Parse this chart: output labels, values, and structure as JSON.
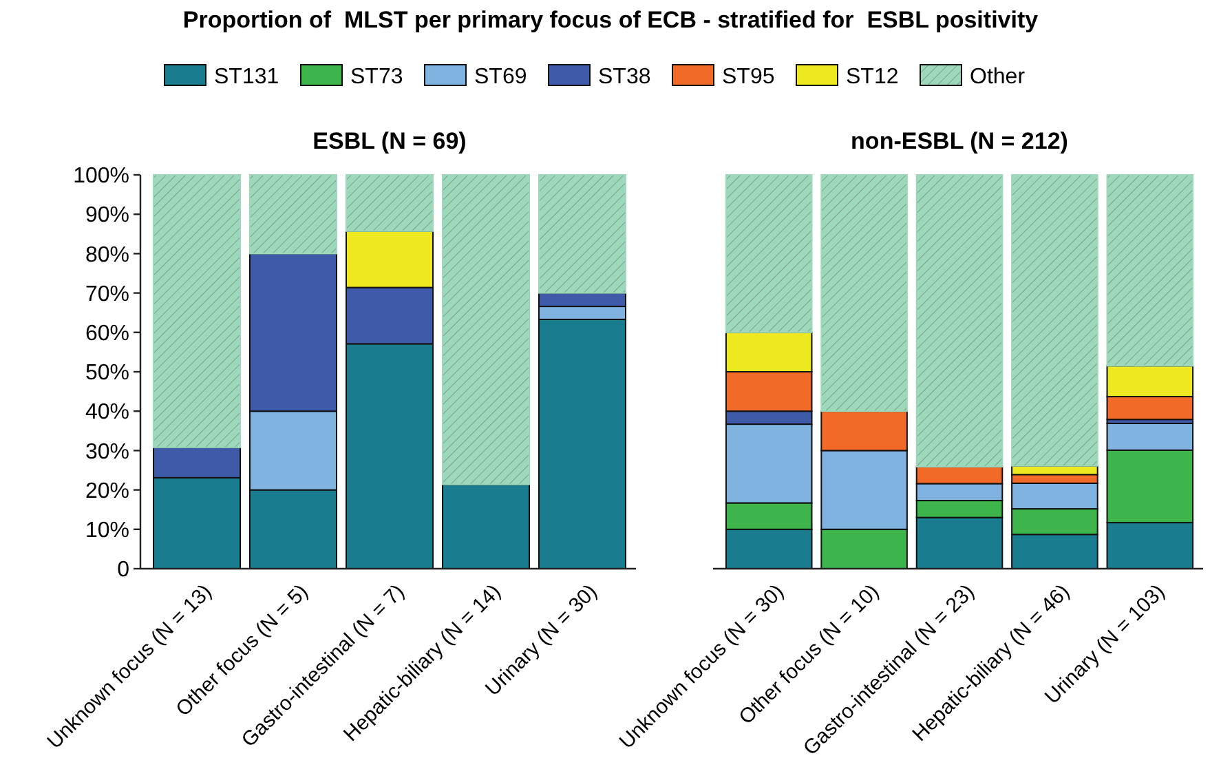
{
  "chart_data": [
    {
      "type": "bar",
      "title": "ESBL (N = 69)",
      "annotations": [
        "Proportion of  MLST per primary focus of ECB - stratified for  ESBL positivity"
      ],
      "stacked": true,
      "legend": "top",
      "grid": false,
      "categories": [
        "Unknown focus (N = 13)",
        "Other focus (N = 5)",
        "Gastro-intestinal (N = 7)",
        "Hepatic-biliary (N = 14)",
        "Urinary (N = 30)"
      ],
      "ylim": [
        0,
        100
      ],
      "yticks": [
        0,
        {
          "value": 10,
          "label": "10%"
        },
        {
          "value": 20,
          "label": "20%"
        },
        {
          "value": 30,
          "label": "30%"
        },
        {
          "value": 40,
          "label": "40%"
        },
        {
          "value": 50,
          "label": "50%"
        },
        {
          "value": 60,
          "label": "60%"
        },
        {
          "value": 70,
          "label": "70%"
        },
        {
          "value": 80,
          "label": "80%"
        },
        {
          "value": 90,
          "label": "90%"
        },
        {
          "value": 100,
          "label": "100%"
        }
      ],
      "series": [
        {
          "name": "ST131",
          "color": "#1a7d8f",
          "values": [
            23.1,
            20,
            57.1,
            21.4,
            63.3
          ]
        },
        {
          "name": "ST73",
          "color": "#3db54a",
          "values": [
            0,
            0,
            0,
            0,
            0
          ]
        },
        {
          "name": "ST69",
          "color": "#80b3e0",
          "values": [
            0,
            20,
            0,
            0,
            3.3
          ]
        },
        {
          "name": "ST38",
          "color": "#3f5aa8",
          "values": [
            7.7,
            40,
            14.3,
            0,
            3.4
          ]
        },
        {
          "name": "ST95",
          "color": "#f26a27",
          "values": [
            0,
            0,
            0,
            0,
            0
          ]
        },
        {
          "name": "ST12",
          "color": "#ede81f",
          "values": [
            0,
            0,
            14.3,
            0,
            0
          ]
        },
        {
          "name": "Other",
          "color": "#9ed8bb",
          "values": [
            69.2,
            20,
            14.3,
            78.6,
            30
          ]
        }
      ]
    },
    {
      "type": "bar",
      "title": "non-ESBL (N = 212)",
      "stacked": true,
      "grid": false,
      "tick_labels": "x",
      "categories": [
        "Unknown focus (N = 30)",
        "Other focus (N = 10)",
        "Gastro-intestinal (N = 23)",
        "Hepatic-biliary (N = 46)",
        "Urinary (N = 103)"
      ],
      "ylim": [
        0,
        100
      ],
      "series": [
        {
          "color": "#1a7d8f",
          "values": [
            10,
            0,
            13,
            8.7,
            11.7
          ]
        },
        {
          "color": "#3db54a",
          "values": [
            6.7,
            10,
            4.3,
            6.5,
            18.4
          ]
        },
        {
          "color": "#80b3e0",
          "values": [
            20,
            20,
            4.3,
            6.5,
            6.8
          ]
        },
        {
          "color": "#3f5aa8",
          "values": [
            3.3,
            0,
            0,
            0,
            1
          ]
        },
        {
          "color": "#f26a27",
          "values": [
            10,
            10,
            4.3,
            2.2,
            5.8
          ]
        },
        {
          "color": "#ede81f",
          "values": [
            10,
            0,
            0,
            2.2,
            7.8
          ]
        },
        {
          "color": "#9ed8bb",
          "values": [
            40,
            60,
            74.1,
            73.9,
            48.5
          ]
        }
      ]
    }
  ]
}
